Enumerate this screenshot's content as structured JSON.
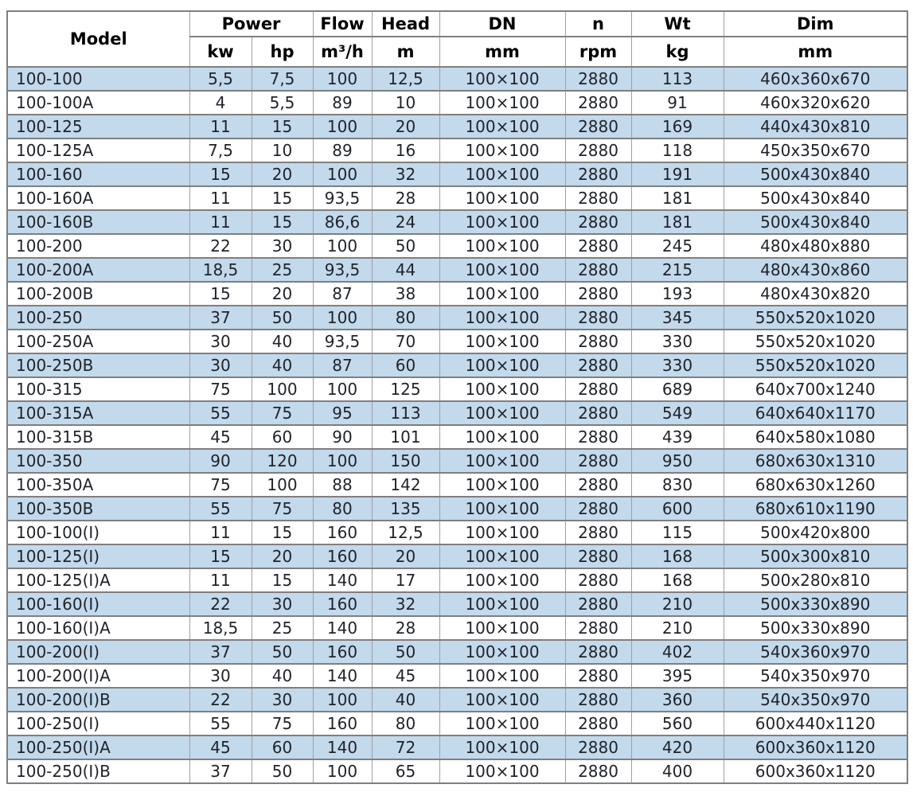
{
  "colors": {
    "row_highlight": "#c3d9ec",
    "row_plain": "#ffffff",
    "border_horizontal": "#7f7f7f",
    "border_vertical": "#a0a0a0",
    "text": "#20242a",
    "header_text": "#000000"
  },
  "table": {
    "header": {
      "model": "Model",
      "power": "Power",
      "power_kw": "kw",
      "power_hp": "hp",
      "flow": "Flow",
      "flow_unit": "m³/h",
      "head": "Head",
      "head_unit": "m",
      "dn": "DN",
      "dn_unit": "mm",
      "n": "n",
      "n_unit": "rpm",
      "wt": "Wt",
      "wt_unit": "kg",
      "dim": "Dim",
      "dim_unit": "mm"
    },
    "col_keys": [
      "model",
      "power-kw",
      "power-hp",
      "flow",
      "head",
      "dn",
      "n",
      "wt",
      "dim"
    ],
    "rows": [
      [
        "100-100",
        "5,5",
        "7,5",
        "100",
        "12,5",
        "100×100",
        "2880",
        "113",
        "460x360x670"
      ],
      [
        "100-100A",
        "4",
        "5,5",
        "89",
        "10",
        "100×100",
        "2880",
        "91",
        "460x320x620"
      ],
      [
        "100-125",
        "11",
        "15",
        "100",
        "20",
        "100×100",
        "2880",
        "169",
        "440x430x810"
      ],
      [
        "100-125A",
        "7,5",
        "10",
        "89",
        "16",
        "100×100",
        "2880",
        "118",
        "450x350x670"
      ],
      [
        "100-160",
        "15",
        "20",
        "100",
        "32",
        "100×100",
        "2880",
        "191",
        "500x430x840"
      ],
      [
        "100-160A",
        "11",
        "15",
        "93,5",
        "28",
        "100×100",
        "2880",
        "181",
        "500x430x840"
      ],
      [
        "100-160B",
        "11",
        "15",
        "86,6",
        "24",
        "100×100",
        "2880",
        "181",
        "500x430x840"
      ],
      [
        "100-200",
        "22",
        "30",
        "100",
        "50",
        "100×100",
        "2880",
        "245",
        "480x480x880"
      ],
      [
        "100-200A",
        "18,5",
        "25",
        "93,5",
        "44",
        "100×100",
        "2880",
        "215",
        "480x430x860"
      ],
      [
        "100-200B",
        "15",
        "20",
        "87",
        "38",
        "100×100",
        "2880",
        "193",
        "480x430x820"
      ],
      [
        "100-250",
        "37",
        "50",
        "100",
        "80",
        "100×100",
        "2880",
        "345",
        "550x520x1020"
      ],
      [
        "100-250A",
        "30",
        "40",
        "93,5",
        "70",
        "100×100",
        "2880",
        "330",
        "550x520x1020"
      ],
      [
        "100-250B",
        "30",
        "40",
        "87",
        "60",
        "100×100",
        "2880",
        "330",
        "550x520x1020"
      ],
      [
        "100-315",
        "75",
        "100",
        "100",
        "125",
        "100×100",
        "2880",
        "689",
        "640x700x1240"
      ],
      [
        "100-315A",
        "55",
        "75",
        "95",
        "113",
        "100×100",
        "2880",
        "549",
        "640x640x1170"
      ],
      [
        "100-315B",
        "45",
        "60",
        "90",
        "101",
        "100×100",
        "2880",
        "439",
        "640x580x1080"
      ],
      [
        "100-350",
        "90",
        "120",
        "100",
        "150",
        "100×100",
        "2880",
        "950",
        "680x630x1310"
      ],
      [
        "100-350A",
        "75",
        "100",
        "88",
        "142",
        "100×100",
        "2880",
        "830",
        "680x630x1260"
      ],
      [
        "100-350B",
        "55",
        "75",
        "80",
        "135",
        "100×100",
        "2880",
        "600",
        "680x610x1190"
      ],
      [
        "100-100(I)",
        "11",
        "15",
        "160",
        "12,5",
        "100×100",
        "2880",
        "115",
        "500x420x800"
      ],
      [
        "100-125(I)",
        "15",
        "20",
        "160",
        "20",
        "100×100",
        "2880",
        "168",
        "500x300x810"
      ],
      [
        "100-125(I)A",
        "11",
        "15",
        "140",
        "17",
        "100×100",
        "2880",
        "168",
        "500x280x810"
      ],
      [
        "100-160(I)",
        "22",
        "30",
        "160",
        "32",
        "100×100",
        "2880",
        "210",
        "500x330x890"
      ],
      [
        "100-160(I)A",
        "18,5",
        "25",
        "140",
        "28",
        "100×100",
        "2880",
        "210",
        "500x330x890"
      ],
      [
        "100-200(I)",
        "37",
        "50",
        "160",
        "50",
        "100×100",
        "2880",
        "402",
        "540x360x970"
      ],
      [
        "100-200(I)A",
        "30",
        "40",
        "140",
        "45",
        "100×100",
        "2880",
        "395",
        "540x350x970"
      ],
      [
        "100-200(I)B",
        "22",
        "30",
        "100",
        "40",
        "100×100",
        "2880",
        "360",
        "540x350x970"
      ],
      [
        "100-250(I)",
        "55",
        "75",
        "160",
        "80",
        "100×100",
        "2880",
        "560",
        "600x440x1120"
      ],
      [
        "100-250(I)A",
        "45",
        "60",
        "140",
        "72",
        "100×100",
        "2880",
        "420",
        "600x360x1120"
      ],
      [
        "100-250(I)B",
        "37",
        "50",
        "100",
        "65",
        "100×100",
        "2880",
        "400",
        "600x360x1120"
      ]
    ]
  }
}
